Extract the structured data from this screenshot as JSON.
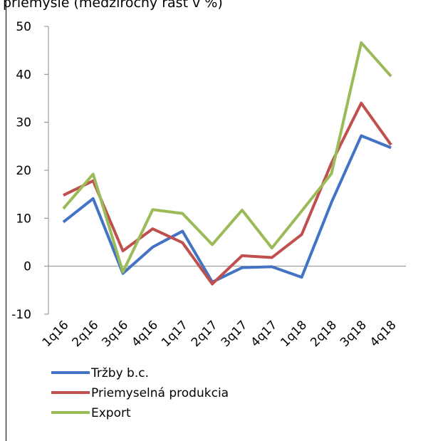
{
  "chart_data": {
    "type": "line",
    "title": "priemysle (medziročný rast v %)",
    "categories": [
      "1q16",
      "2q16",
      "3q16",
      "4q16",
      "1q17",
      "2q17",
      "3q17",
      "4q17",
      "1q18",
      "2q18",
      "3q18",
      "4q18"
    ],
    "series": [
      {
        "name": "Tržby b.c.",
        "color": "#4472c4",
        "values": [
          9.2,
          14.1,
          -1.5,
          4.0,
          7.3,
          -3.3,
          -0.3,
          -0.1,
          -2.3,
          13.3,
          27.2,
          24.7
        ]
      },
      {
        "name": "Priemyselná produkcia",
        "color": "#c0504d",
        "values": [
          14.8,
          17.8,
          3.2,
          7.8,
          4.9,
          -3.7,
          2.2,
          1.8,
          6.6,
          21.5,
          34.0,
          25.3
        ]
      },
      {
        "name": "Export",
        "color": "#9bbb59",
        "values": [
          12.0,
          19.2,
          -1.2,
          11.8,
          11.0,
          4.5,
          11.7,
          3.8,
          11.5,
          19.3,
          46.6,
          39.6
        ]
      }
    ],
    "ylim": [
      -10,
      50
    ],
    "yticks": [
      -10,
      0,
      10,
      20,
      30,
      40,
      50
    ],
    "grid": false,
    "legend": "bottom"
  }
}
